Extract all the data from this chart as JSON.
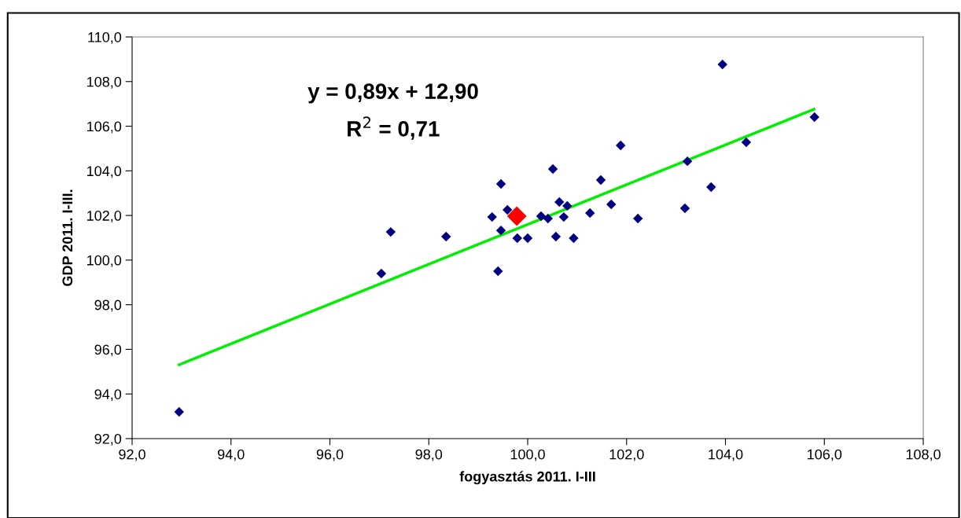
{
  "chart_data": {
    "type": "scatter",
    "xlabel": "fogyasztás 2011. I-III",
    "ylabel": "GDP 2011. I-III.",
    "series": [
      {
        "color": "#000080",
        "marker": "diamond",
        "x": [
          92.95,
          97.04,
          97.23,
          98.35,
          99.28,
          99.4,
          99.46,
          99.46,
          99.59,
          99.79,
          100.0,
          100.27,
          100.41,
          100.51,
          100.57,
          100.64,
          100.73,
          100.8,
          100.93,
          101.26,
          101.48,
          101.69,
          101.88,
          102.23,
          103.18,
          103.23,
          103.71,
          103.94,
          104.42,
          105.8
        ],
        "values": [
          93.2,
          99.4,
          101.26,
          101.05,
          101.93,
          99.5,
          103.41,
          101.33,
          102.25,
          100.98,
          100.98,
          101.97,
          101.86,
          104.08,
          101.05,
          102.6,
          101.93,
          102.43,
          100.98,
          102.11,
          103.59,
          102.5,
          105.14,
          101.86,
          102.32,
          104.43,
          103.27,
          108.77,
          105.28,
          106.41
        ]
      },
      {
        "color": "#ff0000",
        "marker": "diamond",
        "x": [
          99.78
        ],
        "values": [
          101.97
        ]
      },
      {
        "type": "line",
        "color": "#00ee00",
        "marker": "none",
        "x": [
          92.95,
          105.79
        ],
        "values": [
          95.31,
          106.76
        ]
      }
    ],
    "annotations": [
      "y = 0,89x + 12,90",
      "R$^{2}$ = 0,71"
    ],
    "xlim": [
      92,
      108
    ],
    "xticks": [
      {
        "value": 92,
        "label": "92,0"
      },
      {
        "value": 94,
        "label": "94,0"
      },
      {
        "value": 96,
        "label": "96,0"
      },
      {
        "value": 98,
        "label": "98,0"
      },
      {
        "value": 100,
        "label": "100,0"
      },
      {
        "value": 102,
        "label": "102,0"
      },
      {
        "value": 104,
        "label": "104,0"
      },
      {
        "value": 106,
        "label": "106,0"
      },
      {
        "value": 108,
        "label": "108,0"
      }
    ],
    "ylim": [
      92,
      110
    ],
    "yticks": [
      {
        "value": 92,
        "label": "92,0"
      },
      {
        "value": 94,
        "label": "94,0"
      },
      {
        "value": 96,
        "label": "96,0"
      },
      {
        "value": 98,
        "label": "98,0"
      },
      {
        "value": 100,
        "label": "100,0"
      },
      {
        "value": 102,
        "label": "102,0"
      },
      {
        "value": 104,
        "label": "104,0"
      },
      {
        "value": 106,
        "label": "106,0"
      },
      {
        "value": 108,
        "label": "108,0"
      },
      {
        "value": 110,
        "label": "110,0"
      }
    ],
    "grid": false,
    "legend": false
  }
}
